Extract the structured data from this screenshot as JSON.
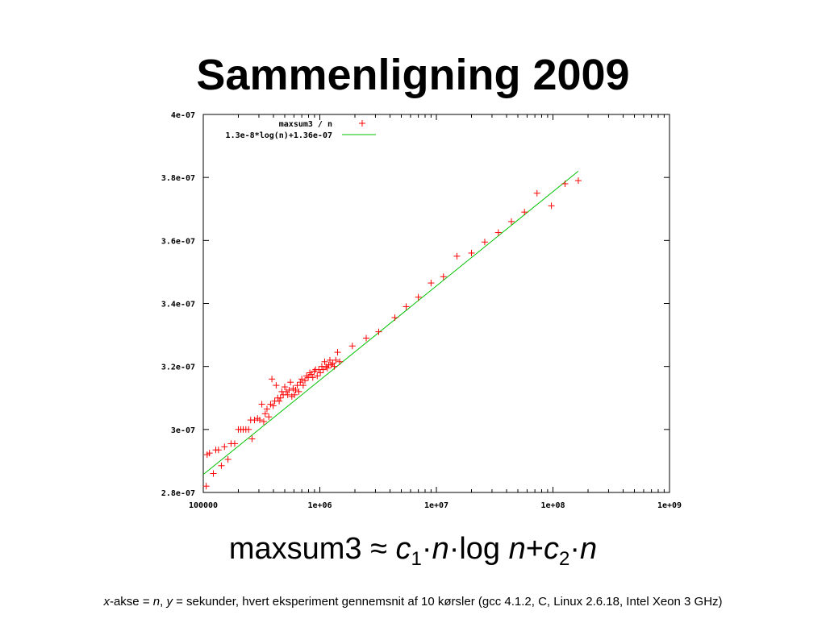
{
  "slide": {
    "title": "Sammenligning 2009",
    "formula": {
      "prefix": "maxsum3 ≈ ",
      "c": "c",
      "sub1": "1",
      "dot": "·",
      "n": "n",
      "log": "log ",
      "plus": "+",
      "sub2": "2"
    },
    "caption": {
      "x": "x",
      "akse": "-akse = ",
      "n": "n",
      "comma": ", ",
      "y": "y",
      "rest": " = sekunder, hvert eksperiment gennemsnit af 10 kørsler (gcc 4.1.2, C, Linux 2.6.18, Intel Xeon 3 GHz)"
    }
  },
  "colors": {
    "points": "#ff0000",
    "fit_line": "#00c000",
    "axis": "#000000"
  },
  "chart_data": {
    "type": "scatter",
    "x_scale": "log",
    "xlim": [
      100000,
      1000000000
    ],
    "ylim": [
      2.8e-07,
      4e-07
    ],
    "x_tick_labels": [
      "100000",
      "1e+06",
      "1e+07",
      "1e+08",
      "1e+09"
    ],
    "x_ticks": [
      100000,
      1000000,
      10000000,
      100000000,
      1000000000
    ],
    "y_tick_labels": [
      "2.8e-07",
      "3e-07",
      "3.2e-07",
      "3.4e-07",
      "3.6e-07",
      "3.8e-07",
      "4e-07"
    ],
    "y_ticks": [
      2.8e-07,
      3e-07,
      3.2e-07,
      3.4e-07,
      3.6e-07,
      3.8e-07,
      4e-07
    ],
    "legend_position": "top-left",
    "series": [
      {
        "name": "maxsum3 / n",
        "marker": "+",
        "color": "#ff0000",
        "points": [
          [
            106000,
            2.82e-07
          ],
          [
            108000,
            2.92e-07
          ],
          [
            113000,
            2.925e-07
          ],
          [
            122000,
            2.86e-07
          ],
          [
            128000,
            2.935e-07
          ],
          [
            135000,
            2.935e-07
          ],
          [
            143000,
            2.885e-07
          ],
          [
            152000,
            2.945e-07
          ],
          [
            163000,
            2.905e-07
          ],
          [
            173000,
            2.955e-07
          ],
          [
            186000,
            2.955e-07
          ],
          [
            200000,
            3e-07
          ],
          [
            210000,
            3e-07
          ],
          [
            220000,
            3e-07
          ],
          [
            232000,
            3e-07
          ],
          [
            245000,
            3e-07
          ],
          [
            255000,
            3.03e-07
          ],
          [
            262000,
            2.97e-07
          ],
          [
            275000,
            3.03e-07
          ],
          [
            292000,
            3.035e-07
          ],
          [
            305000,
            3.03e-07
          ],
          [
            318000,
            3.08e-07
          ],
          [
            330000,
            3.025e-07
          ],
          [
            340000,
            3.05e-07
          ],
          [
            352000,
            3.065e-07
          ],
          [
            365000,
            3.04e-07
          ],
          [
            378000,
            3.08e-07
          ],
          [
            388000,
            3.16e-07
          ],
          [
            398000,
            3.075e-07
          ],
          [
            410000,
            3.09e-07
          ],
          [
            422000,
            3.14e-07
          ],
          [
            435000,
            3.1e-07
          ],
          [
            448000,
            3.09e-07
          ],
          [
            460000,
            3.1e-07
          ],
          [
            472000,
            3.12e-07
          ],
          [
            485000,
            3.11e-07
          ],
          [
            500000,
            3.135e-07
          ],
          [
            515000,
            3.12e-07
          ],
          [
            530000,
            3.11e-07
          ],
          [
            545000,
            3.125e-07
          ],
          [
            560000,
            3.15e-07
          ],
          [
            575000,
            3.105e-07
          ],
          [
            590000,
            3.13e-07
          ],
          [
            605000,
            3.11e-07
          ],
          [
            620000,
            3.125e-07
          ],
          [
            640000,
            3.14e-07
          ],
          [
            660000,
            3.12e-07
          ],
          [
            680000,
            3.15e-07
          ],
          [
            700000,
            3.16e-07
          ],
          [
            720000,
            3.14e-07
          ],
          [
            745000,
            3.155e-07
          ],
          [
            770000,
            3.17e-07
          ],
          [
            795000,
            3.165e-07
          ],
          [
            820000,
            3.18e-07
          ],
          [
            845000,
            3.175e-07
          ],
          [
            870000,
            3.165e-07
          ],
          [
            895000,
            3.185e-07
          ],
          [
            920000,
            3.19e-07
          ],
          [
            950000,
            3.17e-07
          ],
          [
            980000,
            3.19e-07
          ],
          [
            1010000,
            3.18e-07
          ],
          [
            1040000,
            3.2e-07
          ],
          [
            1070000,
            3.19e-07
          ],
          [
            1100000,
            3.215e-07
          ],
          [
            1130000,
            3.2e-07
          ],
          [
            1160000,
            3.195e-07
          ],
          [
            1190000,
            3.205e-07
          ],
          [
            1220000,
            3.22e-07
          ],
          [
            1250000,
            3.205e-07
          ],
          [
            1290000,
            3.21e-07
          ],
          [
            1330000,
            3.2e-07
          ],
          [
            1370000,
            3.22e-07
          ],
          [
            1420000,
            3.245e-07
          ],
          [
            1480000,
            3.215e-07
          ],
          [
            1900000,
            3.265e-07
          ],
          [
            2500000,
            3.29e-07
          ],
          [
            3200000,
            3.31e-07
          ],
          [
            4400000,
            3.355e-07
          ],
          [
            5500000,
            3.39e-07
          ],
          [
            7000000,
            3.42e-07
          ],
          [
            9000000,
            3.465e-07
          ],
          [
            11500000,
            3.485e-07
          ],
          [
            15000000,
            3.55e-07
          ],
          [
            20000000,
            3.56e-07
          ],
          [
            26000000,
            3.595e-07
          ],
          [
            34000000,
            3.625e-07
          ],
          [
            44000000,
            3.66e-07
          ],
          [
            57000000,
            3.69e-07
          ],
          [
            73000000,
            3.75e-07
          ],
          [
            97000000,
            3.71e-07
          ],
          [
            127000000,
            3.78e-07
          ],
          [
            165000000,
            3.79e-07
          ]
        ]
      },
      {
        "name": "1.3e-8*log(n)+1.36e-07",
        "type": "line",
        "color": "#00c000",
        "points": [
          [
            100000,
            2.857e-07
          ],
          [
            165000000,
            3.82e-07
          ]
        ]
      }
    ]
  }
}
